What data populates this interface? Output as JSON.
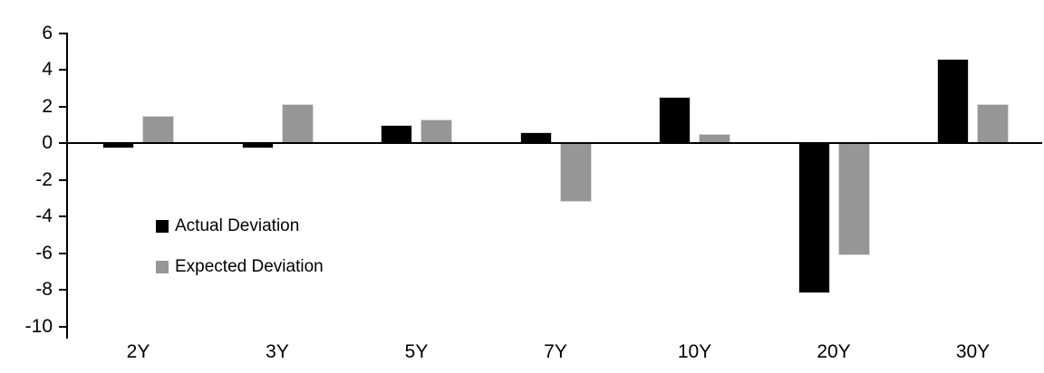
{
  "chart_data": {
    "type": "bar",
    "title": "",
    "xlabel": "",
    "ylabel": "",
    "categories": [
      "2Y",
      "3Y",
      "5Y",
      "7Y",
      "10Y",
      "20Y",
      "30Y"
    ],
    "series": [
      {
        "name": "Actual Deviation",
        "color": "#000000",
        "values": [
          -0.3,
          -0.3,
          1.0,
          0.6,
          2.5,
          -8.2,
          4.6
        ]
      },
      {
        "name": "Expected Deviation",
        "color": "#969696",
        "values": [
          1.5,
          2.1,
          1.3,
          -3.2,
          0.5,
          -6.1,
          2.1
        ]
      }
    ],
    "ylim": [
      -10,
      6
    ],
    "yticks": [
      6,
      4,
      2,
      0,
      -2,
      -4,
      -6,
      -8,
      -10
    ],
    "grid": false,
    "legend_position": "inside-left",
    "bar_orientation": "vertical"
  },
  "colors": {
    "background": "#ffffff",
    "axis": "#000000",
    "bar_border": "#d9d9d9",
    "text": "#000000"
  }
}
